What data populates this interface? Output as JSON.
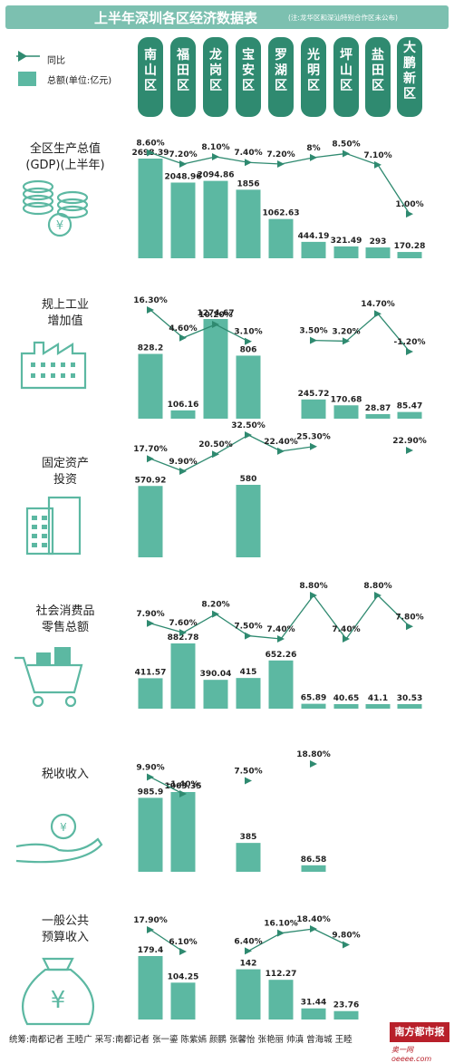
{
  "title": "上半年深圳各区经济数据表",
  "note": "(注:龙华区和深汕特别合作区未公布)",
  "legend": {
    "yoy_label": "同比",
    "total_label": "总额(单位:亿元)"
  },
  "districts": [
    "南山区",
    "福田区",
    "龙岗区",
    "宝安区",
    "罗湖区",
    "光明区",
    "坪山区",
    "盐田区",
    "大鹏新区"
  ],
  "colors": {
    "teal": "#5cb8a2",
    "title_bg": "#7cc0b0",
    "district_bg": "#2f8a70",
    "icon": "#5cb8a2"
  },
  "chart_data": [
    {
      "type": "bar",
      "title": "全区生产总值 (GDP)(上半年)",
      "icon": "coins-icon",
      "categories": [
        "南山区",
        "福田区",
        "龙岗区",
        "宝安区",
        "罗湖区",
        "光明区",
        "坪山区",
        "盐田区",
        "大鹏新区"
      ],
      "values": [
        2698.39,
        2048.96,
        2094.86,
        1856,
        1062.63,
        444.19,
        321.49,
        293,
        170.28
      ],
      "value_labels": [
        "2698.39",
        "2048.96",
        "2094.86",
        "1856",
        "1062.63",
        "444.19",
        "321.49",
        "293",
        "170.28"
      ],
      "yoy": [
        8.6,
        7.2,
        8.1,
        7.4,
        7.2,
        8,
        8.5,
        7.1,
        1.0
      ],
      "yoy_labels": [
        "8.60%",
        "7.20%",
        "8.10%",
        "7.40%",
        "7.20%",
        "8%",
        "8.50%",
        "7.10%",
        "1.00%"
      ]
    },
    {
      "type": "bar",
      "title": "规上工业 增加值",
      "icon": "factory-icon",
      "categories": [
        "南山区",
        "福田区",
        "龙岗区",
        "宝安区",
        "罗湖区",
        "光明区",
        "坪山区",
        "盐田区",
        "大鹏新区"
      ],
      "values": [
        828.2,
        106.16,
        1274.67,
        806,
        null,
        245.72,
        170.68,
        28.87,
        85.47
      ],
      "value_labels": [
        "828.2",
        "106.16",
        "1274.67",
        "806",
        "",
        "245.72",
        "170.68",
        "28.87",
        "85.47"
      ],
      "yoy": [
        16.3,
        4.6,
        10.2,
        3.1,
        null,
        3.5,
        3.2,
        14.7,
        -1.2
      ],
      "yoy_labels": [
        "16.30%",
        "4.60%",
        "10.20%",
        "3.10%",
        "",
        "3.50%",
        "3.20%",
        "14.70%",
        "-1.20%"
      ]
    },
    {
      "type": "bar",
      "title": "固定资产 投资",
      "icon": "building-icon",
      "categories": [
        "南山区",
        "福田区",
        "龙岗区",
        "宝安区",
        "罗湖区",
        "光明区",
        "坪山区",
        "盐田区",
        "大鹏新区"
      ],
      "values": [
        570.92,
        null,
        null,
        580,
        null,
        null,
        null,
        null,
        null
      ],
      "value_labels": [
        "570.92",
        "",
        "",
        "580",
        "",
        "",
        "",
        "",
        ""
      ],
      "yoy": [
        17.7,
        9.9,
        20.5,
        32.5,
        22.4,
        25.3,
        null,
        null,
        22.9
      ],
      "yoy_labels": [
        "17.70%",
        "9.90%",
        "20.50%",
        "32.50%",
        "22.40%",
        "25.30%",
        "",
        "",
        "22.90%"
      ]
    },
    {
      "type": "bar",
      "title": "社会消费品 零售总额",
      "icon": "cart-icon",
      "categories": [
        "南山区",
        "福田区",
        "龙岗区",
        "宝安区",
        "罗湖区",
        "光明区",
        "坪山区",
        "盐田区",
        "大鹏新区"
      ],
      "values": [
        411.57,
        882.78,
        390.04,
        415,
        652.26,
        65.89,
        40.65,
        41.1,
        30.53
      ],
      "value_labels": [
        "411.57",
        "882.78",
        "390.04",
        "415",
        "652.26",
        "65.89",
        "40.65",
        "41.1",
        "30.53"
      ],
      "yoy": [
        7.9,
        7.6,
        8.2,
        7.5,
        7.4,
        8.8,
        7.4,
        8.8,
        7.8
      ],
      "yoy_labels": [
        "7.90%",
        "7.60%",
        "8.20%",
        "7.50%",
        "7.40%",
        "8.80%",
        "7.40%",
        "8.80%",
        "7.80%"
      ]
    },
    {
      "type": "bar",
      "title": "税收收入",
      "icon": "coin-hand-icon",
      "categories": [
        "南山区",
        "福田区",
        "龙岗区",
        "宝安区",
        "罗湖区",
        "光明区",
        "坪山区",
        "盐田区",
        "大鹏新区"
      ],
      "values": [
        985.9,
        1063.35,
        null,
        385,
        null,
        86.58,
        null,
        null,
        null
      ],
      "value_labels": [
        "985.9",
        "1063.35",
        "",
        "385",
        "",
        "86.58",
        "",
        "",
        ""
      ],
      "yoy": [
        9.9,
        -1.4,
        null,
        7.5,
        null,
        18.8,
        null,
        null,
        null
      ],
      "yoy_labels": [
        "9.90%",
        "-1.40%",
        "",
        "7.50%",
        "",
        "18.80%",
        "",
        "",
        ""
      ]
    },
    {
      "type": "bar",
      "title": "一般公共 预算收入",
      "icon": "money-bag-icon",
      "categories": [
        "南山区",
        "福田区",
        "龙岗区",
        "宝安区",
        "罗湖区",
        "光明区",
        "坪山区",
        "盐田区",
        "大鹏新区"
      ],
      "values": [
        179.4,
        104.25,
        null,
        142,
        112.27,
        31.44,
        23.76,
        null,
        null
      ],
      "value_labels": [
        "179.4",
        "104.25",
        "",
        "142",
        "112.27",
        "31.44",
        "23.76",
        "",
        ""
      ],
      "yoy": [
        17.9,
        6.1,
        null,
        6.4,
        16.1,
        18.4,
        9.8,
        null,
        null
      ],
      "yoy_labels": [
        "17.90%",
        "6.10%",
        "",
        "6.40%",
        "16.10%",
        "18.40%",
        "9.80%",
        "",
        ""
      ]
    }
  ],
  "footer": "统筹:南都记者 王睦广 采写:南都记者 张一鎏 陈紫嫣 颜鹏 张馨怡 张艳丽 帅滇 曾海城 王睦",
  "watermark": {
    "brand": "南方都市报",
    "site": "奥一网 oeeee.com"
  }
}
